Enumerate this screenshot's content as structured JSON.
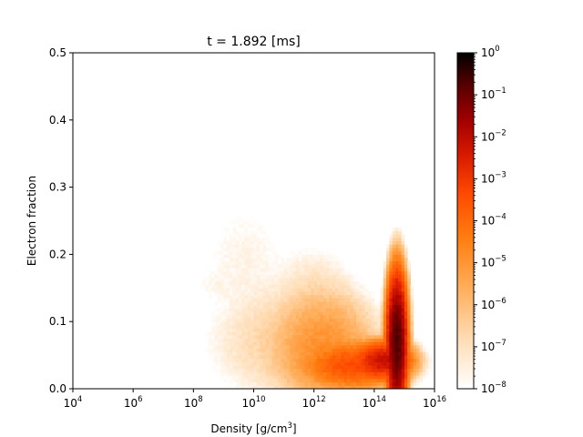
{
  "chart_data": {
    "type": "heatmap",
    "title": "t = 1.892 [ms]",
    "xlabel": "Density [g/cm",
    "xlabel_sup": "3",
    "xlabel_end": "]",
    "ylabel": "Electron fraction",
    "x_scale": "log",
    "x_range_log10": [
      4,
      16
    ],
    "y_range": [
      0,
      0.5
    ],
    "x_ticks": [
      {
        "base": "10",
        "exp": "4"
      },
      {
        "base": "10",
        "exp": "6"
      },
      {
        "base": "10",
        "exp": "8"
      },
      {
        "base": "10",
        "exp": "10"
      },
      {
        "base": "10",
        "exp": "12"
      },
      {
        "base": "10",
        "exp": "14"
      },
      {
        "base": "10",
        "exp": "16"
      }
    ],
    "y_ticks": [
      "0.0",
      "0.1",
      "0.2",
      "0.3",
      "0.4",
      "0.5"
    ],
    "colormap": "gist_heat_r",
    "colorbar": {
      "scale": "log",
      "range_log10": [
        -8,
        0
      ],
      "ticks": [
        {
          "base": "10",
          "exp": "0"
        },
        {
          "base": "10",
          "exp": "−1"
        },
        {
          "base": "10",
          "exp": "−2"
        },
        {
          "base": "10",
          "exp": "−3"
        },
        {
          "base": "10",
          "exp": "−4"
        },
        {
          "base": "10",
          "exp": "−5"
        },
        {
          "base": "10",
          "exp": "−6"
        },
        {
          "base": "10",
          "exp": "−7"
        },
        {
          "base": "10",
          "exp": "−8"
        }
      ]
    },
    "grid": false,
    "legend": "none",
    "blobs": [
      {
        "log_rho": 9.7,
        "ye": 0.19,
        "sig_rho": 0.75,
        "sig_ye": 0.045,
        "peak_log10": -7.6
      },
      {
        "log_rho": 8.7,
        "ye": 0.155,
        "sig_rho": 0.45,
        "sig_ye": 0.012,
        "peak_log10": -7.9
      },
      {
        "log_rho": 11.4,
        "ye": 0.07,
        "sig_rho": 1.1,
        "sig_ye": 0.035,
        "peak_log10": -6.4
      },
      {
        "log_rho": 12.3,
        "ye": 0.06,
        "sig_rho": 0.6,
        "sig_ye": 0.03,
        "peak_log10": -4.9
      },
      {
        "log_rho": 12.0,
        "ye": 0.14,
        "sig_rho": 0.6,
        "sig_ye": 0.03,
        "peak_log10": -6.9
      },
      {
        "log_rho": 13.3,
        "ye": 0.035,
        "sig_rho": 0.55,
        "sig_ye": 0.012,
        "peak_log10": -3.4
      },
      {
        "log_rho": 14.3,
        "ye": 0.042,
        "sig_rho": 0.3,
        "sig_ye": 0.009,
        "peak_log10": -2.2
      },
      {
        "log_rho": 14.75,
        "ye": 0.07,
        "sig_rho": 0.1,
        "sig_ye": 0.03,
        "peak_log10": -0.7
      }
    ]
  }
}
